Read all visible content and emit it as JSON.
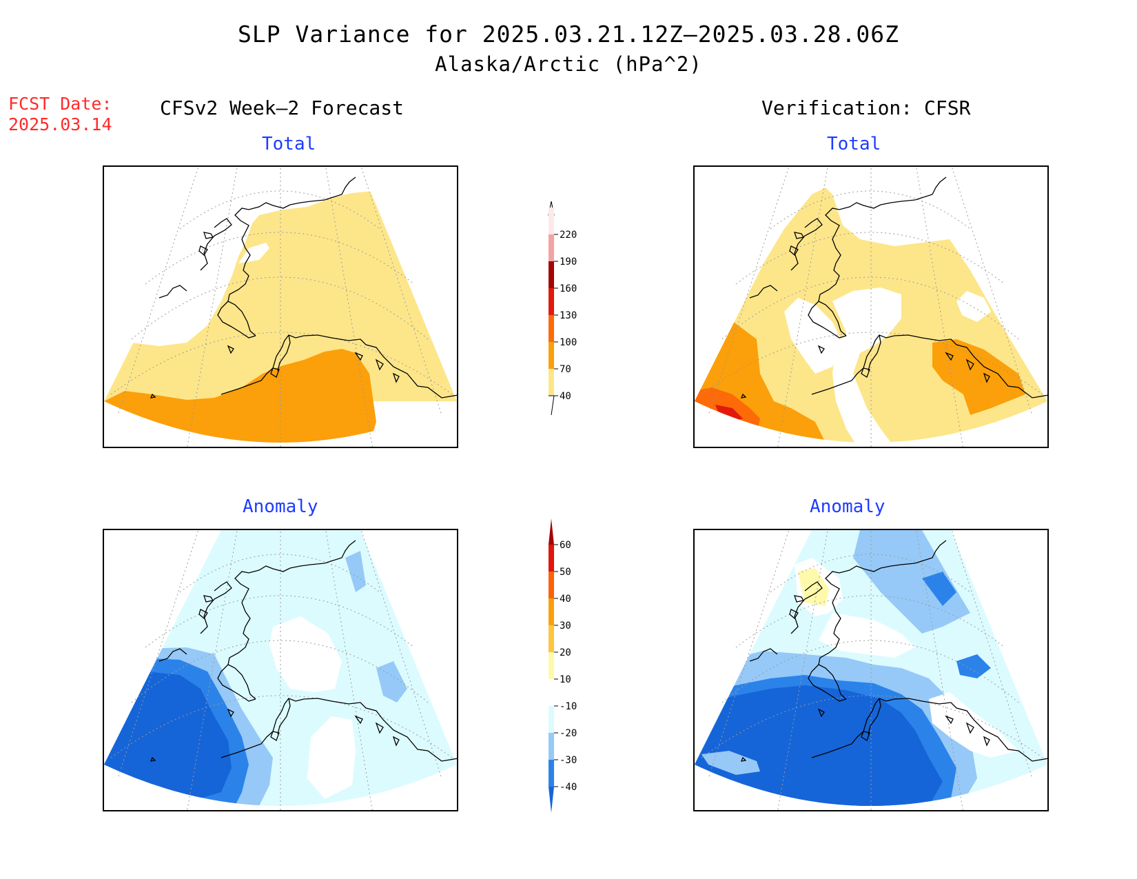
{
  "title": "SLP Variance for 2025.03.21.12Z—2025.03.28.06Z",
  "subtitle": "Alaska/Arctic (hPa^2)",
  "fcst_label": "FCST Date:",
  "fcst_date": "2025.03.14",
  "left_column_title": "CFSv2 Week—2 Forecast",
  "right_column_title": "Verification: CFSR",
  "panels": {
    "forecast_total": "Total",
    "verification_total": "Total",
    "forecast_anomaly": "Anomaly",
    "verification_anomaly": "Anomaly"
  },
  "total_colorbar": {
    "levels": [
      "40",
      "70",
      "100",
      "130",
      "160",
      "190",
      "220"
    ],
    "colors": [
      "#fde68a",
      "#fb9f0a",
      "#fd6a08",
      "#e2190c",
      "#a30505",
      "#f4a2a2",
      "#fde9e9"
    ]
  },
  "anomaly_colorbar": {
    "levels": [
      "-40",
      "-30",
      "-20",
      "-10",
      "10",
      "20",
      "30",
      "40",
      "50",
      "60"
    ],
    "colors": [
      "#1565d8",
      "#2b83ea",
      "#96c9f7",
      "#dcfbff",
      "#ffffff",
      "#fff9ab",
      "#fdc63c",
      "#fd9f0a",
      "#fd6208",
      "#e0150d",
      "#a30505"
    ]
  },
  "colors": {
    "title_text": "#000000",
    "fcst_text": "#ff2a2a",
    "panel_titles": "#1e3cff"
  }
}
